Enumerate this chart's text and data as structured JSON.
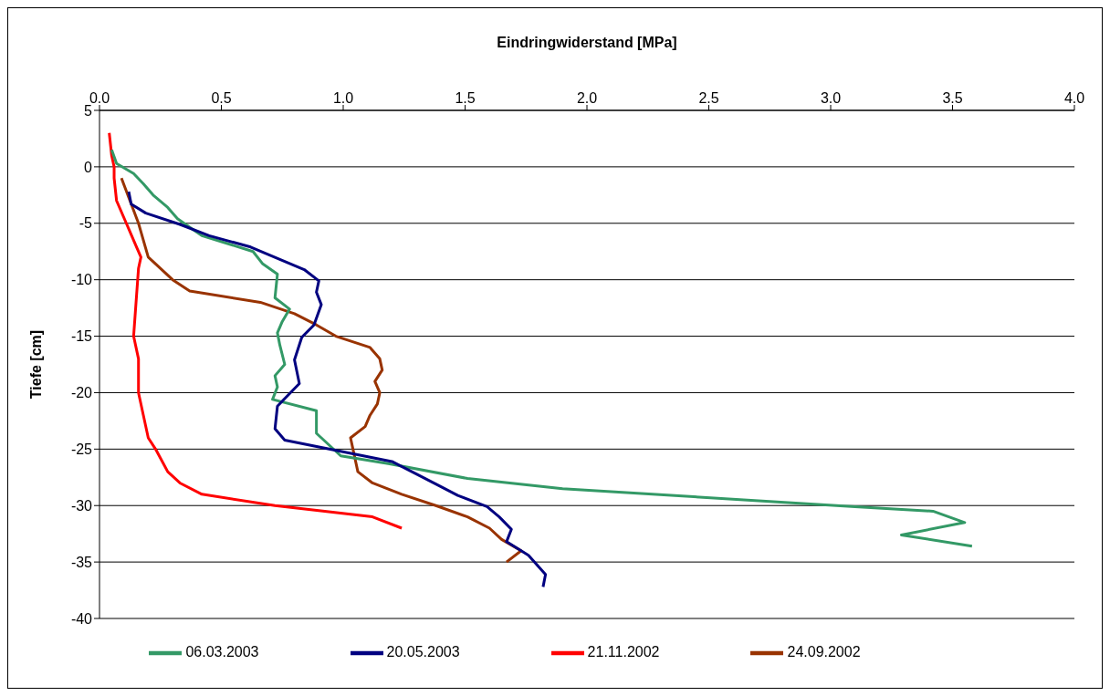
{
  "chart_data": {
    "type": "line",
    "xlabel": "Eindringwiderstand [MPa]",
    "ylabel": "Tiefe [cm]",
    "xlim": [
      0,
      4
    ],
    "xticks": [
      {
        "value": 0,
        "label": "0.0"
      },
      {
        "value": 0.5,
        "label": "0.5"
      },
      {
        "value": 1,
        "label": "1.0"
      },
      {
        "value": 1.5,
        "label": "1.5"
      },
      {
        "value": 2,
        "label": "2.0"
      },
      {
        "value": 2.5,
        "label": "2.5"
      },
      {
        "value": 3,
        "label": "3.0"
      },
      {
        "value": 3.5,
        "label": "3.5"
      },
      {
        "value": 4,
        "label": "4.0"
      }
    ],
    "ylim": [
      -40,
      5
    ],
    "yticks": [
      5,
      0,
      -5,
      -10,
      -15,
      -20,
      -25,
      -30,
      -35,
      -40
    ],
    "grid": "y",
    "legend": "bottom",
    "marker": "none",
    "line_style": "solid",
    "series": [
      {
        "name": "24.09.2002",
        "color": "#993300",
        "x": [
          0.09,
          0.16,
          0.2,
          0.3,
          0.37,
          0.66,
          0.8,
          0.89,
          0.97,
          1.11,
          1.15,
          1.16,
          1.13,
          1.15,
          1.14,
          1.11,
          1.09,
          1.03,
          1.04,
          1.06,
          1.12,
          1.24,
          1.38,
          1.51,
          1.6,
          1.65,
          1.73,
          1.67
        ],
        "values": [
          -1,
          -5,
          -8,
          -10,
          -11,
          -12,
          -13,
          -14,
          -15,
          -16,
          -17,
          -18,
          -19,
          -20,
          -21,
          -22,
          -23,
          -24,
          -25,
          -27,
          -28,
          -29,
          -30,
          -31,
          -32,
          -33,
          -34,
          -35
        ]
      },
      {
        "name": "21.11.2002",
        "color": "#ff0000",
        "x": [
          0.04,
          0.05,
          0.06,
          0.06,
          0.07,
          0.11,
          0.15,
          0.17,
          0.16,
          0.15,
          0.14,
          0.16,
          0.16,
          0.18,
          0.2,
          0.23,
          0.28,
          0.33,
          0.42,
          0.72,
          1.12,
          1.24
        ],
        "values": [
          3,
          1,
          0,
          -1,
          -3,
          -5,
          -7,
          -8,
          -9,
          -12,
          -15,
          -17,
          -20,
          -22,
          -24,
          -25,
          -27,
          -28,
          -29,
          -30,
          -31,
          -32
        ]
      },
      {
        "name": "06.03.2003",
        "color": "#339966",
        "x": [
          0.05,
          0.07,
          0.14,
          0.18,
          0.22,
          0.28,
          0.32,
          0.42,
          0.63,
          0.67,
          0.73,
          0.72,
          0.78,
          0.75,
          0.73,
          0.74,
          0.76,
          0.72,
          0.73,
          0.71,
          0.89,
          0.89,
          0.99,
          1.19,
          1.51,
          1.9,
          3.1,
          3.42,
          3.55,
          3.29,
          3.58
        ],
        "values": [
          1.5,
          0.3,
          -0.6,
          -1.5,
          -2.5,
          -3.6,
          -4.6,
          -6.1,
          -7.5,
          -8.6,
          -9.5,
          -11.6,
          -12.6,
          -13.7,
          -14.7,
          -15.8,
          -17.5,
          -18.5,
          -19.5,
          -20.6,
          -21.6,
          -23.6,
          -25.6,
          -26.3,
          -27.6,
          -28.5,
          -30.1,
          -30.5,
          -31.5,
          -32.6,
          -33.6
        ]
      },
      {
        "name": "20.05.2003",
        "color": "#000080",
        "x": [
          0.12,
          0.13,
          0.19,
          0.33,
          0.45,
          0.62,
          0.74,
          0.84,
          0.9,
          0.89,
          0.91,
          0.88,
          0.83,
          0.8,
          0.82,
          0.73,
          0.72,
          0.76,
          1.2,
          1.3,
          1.38,
          1.47,
          1.59,
          1.64,
          1.69,
          1.67,
          1.76,
          1.83,
          1.82
        ],
        "values": [
          -2.2,
          -3.3,
          -4.1,
          -5.1,
          -6.1,
          -7.1,
          -8.2,
          -9.1,
          -10.1,
          -11.1,
          -12.2,
          -14,
          -15.1,
          -17.1,
          -19.2,
          -21.2,
          -23.2,
          -24.2,
          -26.1,
          -27.2,
          -28.1,
          -29.1,
          -30.1,
          -31,
          -32.1,
          -33.2,
          -34.4,
          -36.1,
          -37.2
        ]
      }
    ]
  }
}
